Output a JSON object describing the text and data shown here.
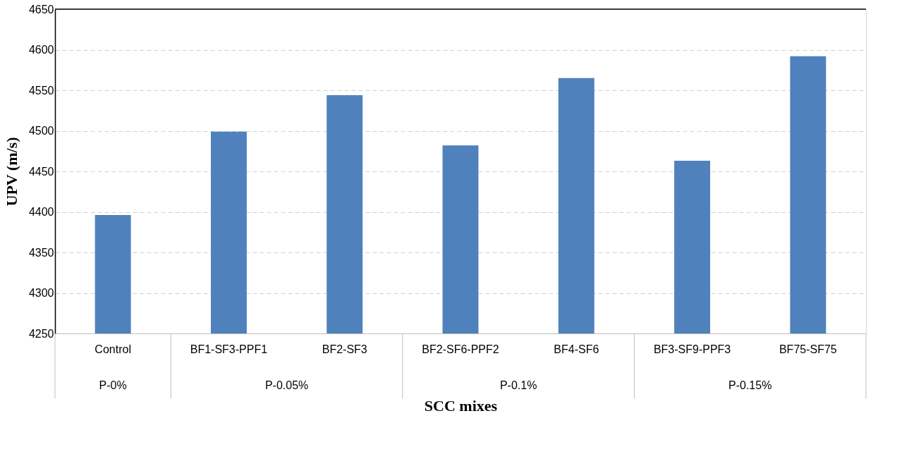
{
  "chart_data": {
    "type": "bar",
    "xlabel": "SCC mixes",
    "ylabel": "UPV (m/s)",
    "categories": [
      "Control",
      "BF1-SF3-PPF1",
      "BF2-SF3",
      "BF2-SF6-PPF2",
      "BF4-SF6",
      "BF3-SF9-PPF3",
      "BF75-SF75"
    ],
    "values": [
      4396,
      4499,
      4544,
      4482,
      4565,
      4463,
      4592
    ],
    "color": "#4f81bd",
    "ylim": [
      4250,
      4650
    ],
    "yticks": [
      4250,
      4300,
      4350,
      4400,
      4450,
      4500,
      4550,
      4600,
      4650
    ],
    "grid": "y",
    "annotations": [
      "P-0%",
      "P-0.05%",
      "P-0.1%",
      "P-0.15%"
    ]
  }
}
